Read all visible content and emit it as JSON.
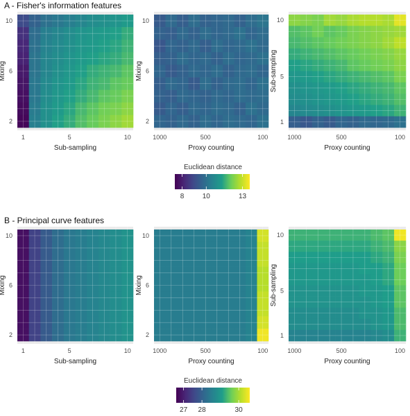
{
  "colors": {
    "viridis": [
      "#440154",
      "#482777",
      "#3f4a8a",
      "#31678e",
      "#26838f",
      "#1f9d8a",
      "#6cce5a",
      "#b6de2b",
      "#fee825"
    ],
    "panel_bg": "#ebebeb",
    "grid": "#ffffff",
    "text": "#333333"
  },
  "sections": [
    {
      "title": "A - Fisher's information features",
      "legend": {
        "title": "Euclidean distance",
        "ticks": [
          8,
          10,
          13
        ],
        "range": [
          7.4,
          13.6
        ]
      },
      "panels": [
        {
          "ylabel": "Mixing",
          "xlabel": "Sub-sampling"
        },
        {
          "ylabel": "Mixing",
          "xlabel": "Proxy counting"
        },
        {
          "ylabel": "Sub-sampling",
          "xlabel": "Proxy counting"
        }
      ]
    },
    {
      "title": "B - Principal curve features",
      "legend": {
        "title": "Euclidean distance",
        "ticks": [
          27,
          28,
          30
        ],
        "range": [
          26.6,
          30.6
        ]
      },
      "panels": [
        {
          "ylabel": "Mixing",
          "xlabel": "Sub-sampling"
        },
        {
          "ylabel": "Mixing",
          "xlabel": "Proxy counting"
        },
        {
          "ylabel": "Sub-sampling",
          "xlabel": "Proxy counting"
        }
      ]
    }
  ],
  "chart_data": [
    {
      "type": "heatmap",
      "section": "A",
      "xlabel": "Sub-sampling",
      "ylabel": "Mixing",
      "x_ticks": [
        "1",
        "5",
        "10"
      ],
      "y_ticks": [
        "2",
        "6",
        "10"
      ],
      "x_reversed": false,
      "x": [
        1,
        2,
        3,
        4,
        5,
        6,
        7,
        8,
        9,
        10
      ],
      "y": [
        10,
        9,
        8,
        7,
        6,
        5,
        4,
        3,
        2
      ],
      "z": [
        [
          9.0,
          9.6,
          10.0,
          10.2,
          10.4,
          10.6,
          10.8,
          10.9,
          11.0,
          11.2
        ],
        [
          8.4,
          9.9,
          10.4,
          10.6,
          10.8,
          11.0,
          11.1,
          11.2,
          11.3,
          11.5
        ],
        [
          8.2,
          10.0,
          10.5,
          10.7,
          10.9,
          11.1,
          11.2,
          11.3,
          11.4,
          11.6
        ],
        [
          8.1,
          10.1,
          10.6,
          10.8,
          11.0,
          11.2,
          11.3,
          11.4,
          11.5,
          11.7
        ],
        [
          7.9,
          10.1,
          10.6,
          10.9,
          11.1,
          11.3,
          11.5,
          11.6,
          11.7,
          11.9
        ],
        [
          7.8,
          10.2,
          10.7,
          11.0,
          11.2,
          11.4,
          11.6,
          11.7,
          11.9,
          12.0
        ],
        [
          7.7,
          10.2,
          10.8,
          11.1,
          11.3,
          11.5,
          11.7,
          11.9,
          12.0,
          12.2
        ],
        [
          7.6,
          10.3,
          10.9,
          11.2,
          11.4,
          11.7,
          11.9,
          12.1,
          12.2,
          12.4
        ],
        [
          7.5,
          10.4,
          10.9,
          11.3,
          11.5,
          11.8,
          12.0,
          12.2,
          12.4,
          12.6
        ]
      ]
    },
    {
      "type": "heatmap",
      "section": "A",
      "xlabel": "Proxy counting",
      "ylabel": "Mixing",
      "x_ticks": [
        "1000",
        "500",
        "100"
      ],
      "y_ticks": [
        "2",
        "6",
        "10"
      ],
      "x_reversed": true,
      "x": [
        1000,
        900,
        800,
        700,
        600,
        500,
        400,
        300,
        200,
        100
      ],
      "y": [
        10,
        9,
        8,
        7,
        6,
        5,
        4,
        3,
        2
      ],
      "z": [
        [
          9.4,
          9.8,
          9.5,
          9.9,
          9.6,
          9.7,
          9.8,
          9.6,
          9.9,
          10.1
        ],
        [
          9.6,
          9.5,
          9.8,
          9.6,
          9.9,
          9.7,
          9.8,
          10.0,
          9.7,
          9.9
        ],
        [
          9.3,
          9.7,
          9.6,
          9.8,
          9.5,
          9.9,
          9.7,
          9.8,
          10.0,
          9.8
        ],
        [
          9.5,
          9.6,
          9.9,
          9.7,
          9.8,
          9.6,
          9.9,
          9.7,
          9.8,
          10.0
        ],
        [
          9.7,
          9.4,
          9.6,
          9.8,
          9.7,
          9.9,
          9.6,
          9.8,
          9.9,
          9.7
        ],
        [
          9.5,
          9.8,
          9.7,
          9.4,
          9.9,
          9.6,
          9.8,
          9.9,
          9.7,
          10.0
        ],
        [
          9.6,
          9.5,
          9.8,
          9.7,
          9.6,
          9.8,
          9.7,
          9.9,
          9.8,
          9.9
        ],
        [
          9.4,
          9.7,
          9.5,
          9.8,
          9.7,
          9.9,
          9.8,
          9.6,
          10.0,
          9.8
        ],
        [
          9.7,
          9.6,
          9.8,
          9.6,
          9.9,
          9.7,
          9.9,
          9.8,
          9.7,
          10.0
        ]
      ]
    },
    {
      "type": "heatmap",
      "section": "A",
      "xlabel": "Proxy counting",
      "ylabel": "Sub-sampling",
      "x_ticks": [
        "1000",
        "500",
        "100"
      ],
      "y_ticks": [
        "1",
        "5",
        "10"
      ],
      "x_reversed": true,
      "x": [
        1000,
        900,
        800,
        700,
        600,
        500,
        400,
        300,
        200,
        100
      ],
      "y": [
        10,
        9,
        8,
        7,
        6,
        5,
        4,
        3,
        2,
        1
      ],
      "z": [
        [
          12.4,
          12.3,
          12.2,
          12.6,
          12.5,
          12.7,
          12.8,
          12.8,
          12.7,
          13.3
        ],
        [
          11.8,
          11.9,
          12.1,
          11.9,
          12.0,
          12.2,
          12.3,
          12.4,
          12.5,
          12.6
        ],
        [
          11.7,
          11.8,
          11.9,
          12.0,
          12.1,
          12.2,
          12.3,
          12.4,
          12.6,
          12.9
        ],
        [
          11.5,
          11.6,
          11.7,
          11.8,
          11.9,
          12.0,
          12.1,
          12.2,
          12.3,
          12.5
        ],
        [
          11.3,
          11.4,
          11.5,
          11.6,
          11.7,
          11.9,
          12.0,
          12.1,
          12.2,
          12.4
        ],
        [
          11.1,
          11.2,
          11.3,
          11.4,
          11.5,
          11.6,
          11.7,
          11.8,
          11.9,
          12.2
        ],
        [
          10.9,
          11.0,
          11.1,
          11.2,
          11.3,
          11.4,
          11.5,
          11.6,
          11.7,
          11.9
        ],
        [
          10.8,
          10.9,
          11.0,
          11.1,
          11.2,
          11.3,
          11.4,
          11.5,
          11.6,
          11.8
        ],
        [
          10.6,
          10.7,
          10.8,
          10.9,
          11.0,
          11.1,
          11.2,
          11.3,
          11.4,
          11.6
        ],
        [
          9.5,
          9.3,
          9.6,
          9.4,
          9.7,
          9.6,
          9.8,
          9.7,
          9.8,
          10.0
        ]
      ]
    },
    {
      "type": "heatmap",
      "section": "B",
      "xlabel": "Sub-sampling",
      "ylabel": "Mixing",
      "x_ticks": [
        "1",
        "5",
        "10"
      ],
      "y_ticks": [
        "2",
        "6",
        "10"
      ],
      "x_reversed": false,
      "x": [
        1,
        2,
        3,
        4,
        5,
        6,
        7,
        8,
        9,
        10
      ],
      "y": [
        10,
        9,
        8,
        7,
        6,
        5,
        4,
        3,
        2
      ],
      "z": [
        [
          26.8,
          27.5,
          27.9,
          28.2,
          28.4,
          28.5,
          28.6,
          28.7,
          28.8,
          28.9
        ],
        [
          26.8,
          27.5,
          27.9,
          28.2,
          28.4,
          28.5,
          28.6,
          28.7,
          28.8,
          28.9
        ],
        [
          26.8,
          27.5,
          27.9,
          28.2,
          28.4,
          28.5,
          28.6,
          28.7,
          28.8,
          28.9
        ],
        [
          26.8,
          27.5,
          27.9,
          28.2,
          28.4,
          28.5,
          28.6,
          28.7,
          28.8,
          28.9
        ],
        [
          26.8,
          27.5,
          27.9,
          28.2,
          28.4,
          28.5,
          28.6,
          28.7,
          28.8,
          28.9
        ],
        [
          26.8,
          27.5,
          27.9,
          28.2,
          28.4,
          28.5,
          28.6,
          28.7,
          28.8,
          28.9
        ],
        [
          26.8,
          27.5,
          27.9,
          28.2,
          28.4,
          28.5,
          28.6,
          28.7,
          28.8,
          28.9
        ],
        [
          26.8,
          27.5,
          27.9,
          28.2,
          28.4,
          28.5,
          28.6,
          28.7,
          28.8,
          28.9
        ],
        [
          26.8,
          27.5,
          27.9,
          28.2,
          28.4,
          28.5,
          28.6,
          28.7,
          28.8,
          28.9
        ]
      ]
    },
    {
      "type": "heatmap",
      "section": "B",
      "xlabel": "Proxy counting",
      "ylabel": "Mixing",
      "x_ticks": [
        "1000",
        "500",
        "100"
      ],
      "y_ticks": [
        "2",
        "6",
        "10"
      ],
      "x_reversed": true,
      "x": [
        1000,
        900,
        800,
        700,
        600,
        500,
        400,
        300,
        200,
        100
      ],
      "y": [
        10,
        9,
        8,
        7,
        6,
        5,
        4,
        3,
        2
      ],
      "z": [
        [
          28.5,
          28.5,
          28.5,
          28.5,
          28.5,
          28.5,
          28.5,
          28.5,
          28.6,
          30.3
        ],
        [
          28.5,
          28.5,
          28.5,
          28.5,
          28.5,
          28.5,
          28.5,
          28.5,
          28.6,
          30.2
        ],
        [
          28.5,
          28.5,
          28.5,
          28.5,
          28.5,
          28.5,
          28.5,
          28.5,
          28.6,
          30.2
        ],
        [
          28.5,
          28.5,
          28.5,
          28.5,
          28.5,
          28.5,
          28.5,
          28.5,
          28.6,
          30.1
        ],
        [
          28.5,
          28.5,
          28.5,
          28.5,
          28.5,
          28.5,
          28.5,
          28.5,
          28.6,
          30.1
        ],
        [
          28.5,
          28.5,
          28.5,
          28.5,
          28.5,
          28.5,
          28.5,
          28.5,
          28.6,
          30.2
        ],
        [
          28.5,
          28.5,
          28.5,
          28.5,
          28.5,
          28.5,
          28.5,
          28.5,
          28.6,
          30.2
        ],
        [
          28.5,
          28.5,
          28.5,
          28.5,
          28.5,
          28.5,
          28.5,
          28.5,
          28.6,
          30.3
        ],
        [
          28.5,
          28.5,
          28.5,
          28.5,
          28.5,
          28.5,
          28.5,
          28.5,
          28.6,
          30.5
        ]
      ]
    },
    {
      "type": "heatmap",
      "section": "B",
      "xlabel": "Proxy counting",
      "ylabel": "Sub-sampling",
      "x_ticks": [
        "1000",
        "500",
        "100"
      ],
      "y_ticks": [
        "1",
        "5",
        "10"
      ],
      "x_reversed": true,
      "x": [
        1000,
        900,
        800,
        700,
        600,
        500,
        400,
        300,
        200,
        100
      ],
      "y": [
        10,
        9,
        8,
        7,
        6,
        5,
        4,
        3,
        2,
        1
      ],
      "z": [
        [
          29.3,
          29.3,
          29.3,
          29.3,
          29.3,
          29.3,
          29.3,
          29.4,
          29.5,
          30.5
        ],
        [
          29.2,
          29.2,
          29.2,
          29.2,
          29.2,
          29.2,
          29.2,
          29.3,
          29.4,
          29.8
        ],
        [
          29.1,
          29.1,
          29.1,
          29.1,
          29.1,
          29.1,
          29.1,
          29.2,
          29.3,
          29.7
        ],
        [
          29.0,
          29.0,
          29.0,
          29.0,
          29.0,
          29.0,
          29.1,
          29.1,
          29.2,
          29.6
        ],
        [
          29.0,
          29.0,
          29.0,
          29.0,
          29.0,
          29.0,
          29.0,
          29.1,
          29.2,
          29.6
        ],
        [
          28.9,
          28.9,
          28.9,
          28.9,
          28.9,
          28.9,
          29.0,
          29.0,
          29.1,
          29.5
        ],
        [
          28.9,
          28.9,
          28.9,
          28.9,
          28.9,
          28.9,
          28.9,
          29.0,
          29.1,
          29.5
        ],
        [
          28.8,
          28.8,
          28.8,
          28.8,
          28.8,
          28.8,
          28.9,
          28.9,
          29.0,
          29.4
        ],
        [
          28.8,
          28.8,
          28.8,
          28.8,
          28.8,
          28.8,
          28.8,
          28.9,
          29.0,
          29.4
        ],
        [
          28.6,
          28.6,
          28.6,
          28.6,
          28.6,
          28.6,
          28.6,
          28.7,
          28.8,
          29.3
        ]
      ]
    }
  ]
}
